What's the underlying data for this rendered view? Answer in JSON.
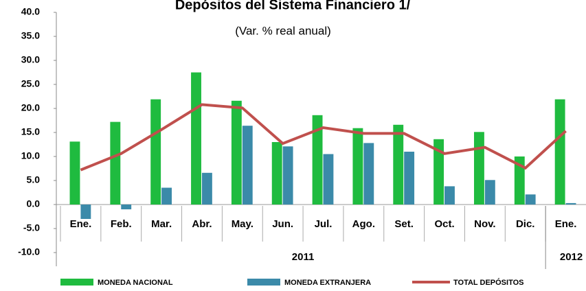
{
  "chart_data": {
    "type": "bar-line",
    "title": "Depósitos del Sistema Financiero 1/",
    "subtitle": "(Var. % real anual)",
    "categories": [
      "Ene.",
      "Feb.",
      "Mar.",
      "Abr.",
      "May.",
      "Jun.",
      "Jul.",
      "Ago.",
      "Set.",
      "Oct.",
      "Nov.",
      "Dic.",
      "Ene."
    ],
    "x_groups": [
      {
        "label": "2011",
        "span": 12
      },
      {
        "label": "2012",
        "span": 1
      }
    ],
    "series": [
      {
        "name": "MONEDA NACIONAL",
        "color": "#1fbb3f",
        "kind": "bar",
        "values": [
          13.1,
          17.2,
          21.9,
          27.5,
          21.6,
          13.0,
          18.6,
          15.9,
          16.6,
          13.6,
          15.1,
          10.0,
          21.9
        ]
      },
      {
        "name": "MONEDA EXTRANJERA",
        "color": "#3b8aa9",
        "kind": "bar",
        "values": [
          -3.0,
          -1.0,
          3.5,
          6.6,
          16.4,
          12.1,
          10.5,
          12.8,
          11.0,
          3.8,
          5.1,
          2.1,
          0.3
        ]
      },
      {
        "name": "TOTAL DEPÓSITOS",
        "color": "#c0504d",
        "kind": "line",
        "values": [
          7.2,
          10.6,
          15.6,
          20.8,
          20.1,
          12.7,
          16.0,
          14.8,
          14.8,
          10.6,
          11.9,
          7.6,
          15.3
        ]
      }
    ],
    "ylim": [
      -10,
      40
    ],
    "yticks": [
      {
        "value": 40,
        "label": "40.0"
      },
      {
        "value": 35,
        "label": "35.0"
      },
      {
        "value": 30,
        "label": "30.0"
      },
      {
        "value": 25,
        "label": "25.0"
      },
      {
        "value": 20,
        "label": "20.0"
      },
      {
        "value": 15,
        "label": "15.0"
      },
      {
        "value": 10,
        "label": "10.0"
      },
      {
        "value": 5,
        "label": "5.0"
      },
      {
        "value": 0,
        "label": "0.0"
      },
      {
        "value": -5,
        "label": "-5.0"
      },
      {
        "value": -10,
        "label": "-10.0"
      }
    ],
    "legend": "bottom"
  }
}
